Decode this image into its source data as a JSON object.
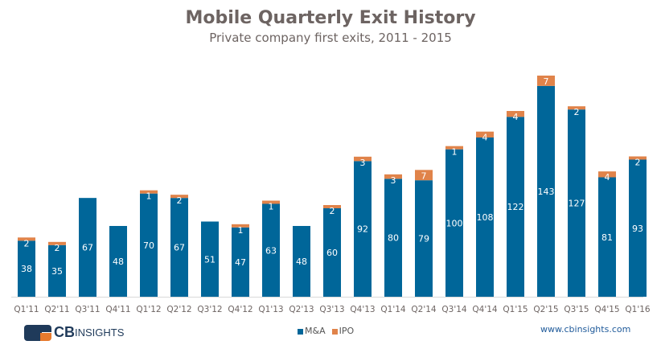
{
  "chart_data": {
    "type": "bar",
    "stacked": true,
    "title": "Mobile Quarterly Exit History",
    "subtitle": "Private company first exits, 2011 - 2015",
    "xlabel": "",
    "ylabel": "",
    "grid": false,
    "legend_position": "bottom-center",
    "categories": [
      "Q1'11",
      "Q2'11",
      "Q3'11",
      "Q4'11",
      "Q1'12",
      "Q2'12",
      "Q3'12",
      "Q4'12",
      "Q1'13",
      "Q2'13",
      "Q3'13",
      "Q4'13",
      "Q1'14",
      "Q2'14",
      "Q3'14",
      "Q4'14",
      "Q1'15",
      "Q2'15",
      "Q3'15",
      "Q4'15",
      "Q1'16"
    ],
    "series": [
      {
        "name": "M&A",
        "color": "#006699",
        "values": [
          38,
          35,
          67,
          48,
          70,
          67,
          51,
          47,
          63,
          48,
          60,
          92,
          80,
          79,
          100,
          108,
          122,
          143,
          127,
          81,
          93
        ]
      },
      {
        "name": "IPO",
        "color": "#e0834a",
        "values": [
          2,
          2,
          0,
          0,
          1,
          2,
          0,
          1,
          1,
          0,
          2,
          3,
          3,
          7,
          1,
          4,
          4,
          7,
          2,
          4,
          2
        ]
      }
    ],
    "ylim": [
      0,
      150
    ]
  },
  "legend": [
    {
      "label": "M&A",
      "color": "#006699"
    },
    {
      "label": "IPO",
      "color": "#e0834a"
    }
  ],
  "branding": {
    "logo_cb": "CB",
    "logo_insights": "INSIGHTS",
    "url": "www.cbinsights.com"
  }
}
